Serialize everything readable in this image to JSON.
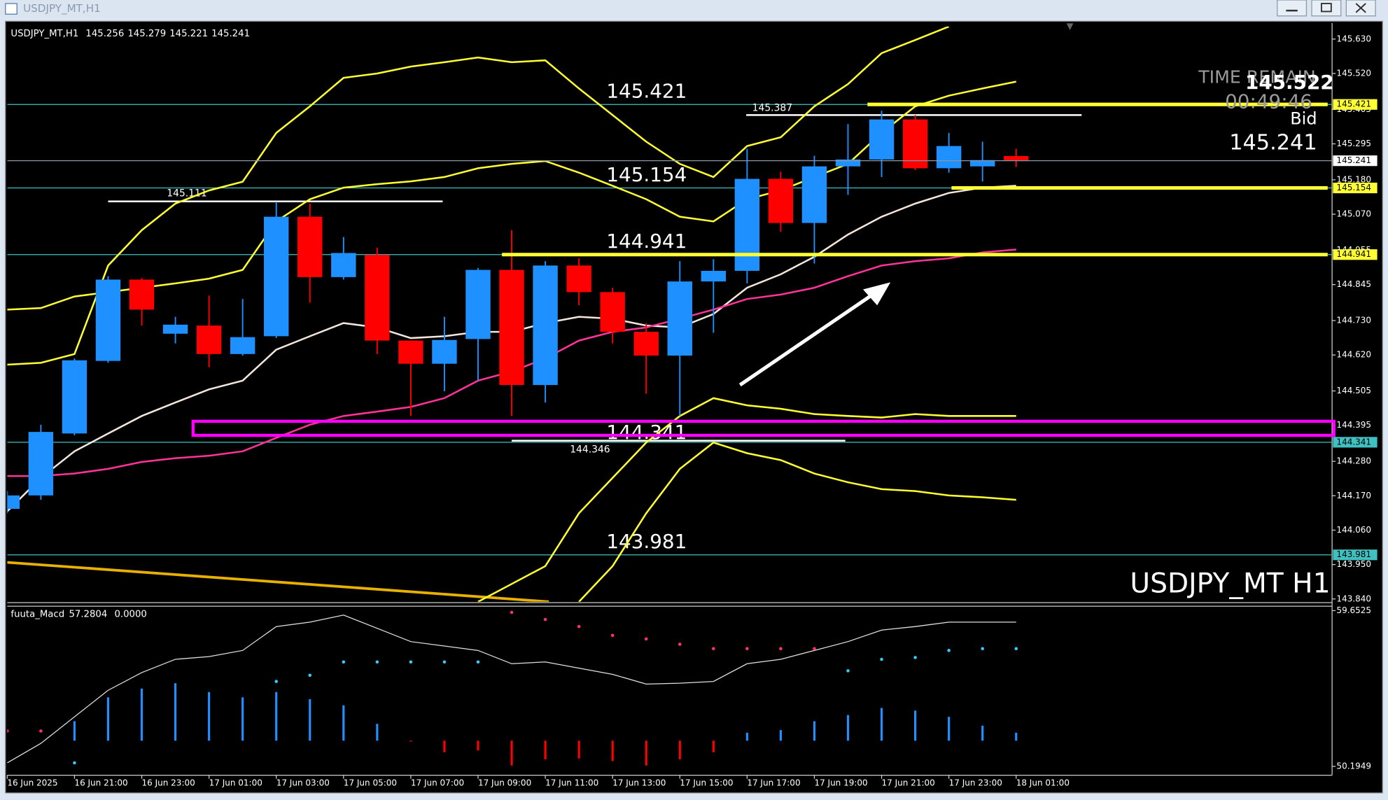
{
  "window_title": "USDJPY_MT,H1",
  "chart_data": [
    {
      "type": "candlestick",
      "symbol": "USDJPY_MT,H1",
      "categories": [
        "16 Jun 2025",
        null,
        "16 Jun 21:00",
        null,
        "16 Jun 23:00",
        null,
        "17 Jun 01:00",
        null,
        "17 Jun 03:00",
        null,
        "17 Jun 05:00",
        null,
        "17 Jun 07:00",
        null,
        "17 Jun 09:00",
        null,
        "17 Jun 11:00",
        null,
        "17 Jun 13:00",
        null,
        "17 Jun 15:00",
        null,
        "17 Jun 17:00",
        null,
        "17 Jun 19:00",
        null,
        "17 Jun 21:00",
        null,
        "17 Jun 23:00",
        null,
        "18 Jun 01:00"
      ],
      "open": [
        144.128,
        144.171,
        144.369,
        144.601,
        144.861,
        144.688,
        144.714,
        144.623,
        144.68,
        145.062,
        144.869,
        144.94,
        144.666,
        144.592,
        144.671,
        144.892,
        144.524,
        144.906,
        144.821,
        144.694,
        144.618,
        144.855,
        144.889,
        145.183,
        145.042,
        145.223,
        145.245,
        145.373,
        145.217,
        145.223,
        145.256
      ],
      "high": [
        144.185,
        144.397,
        144.609,
        144.872,
        144.866,
        144.742,
        144.81,
        144.799,
        145.11,
        145.104,
        144.997,
        144.963,
        144.666,
        144.742,
        144.898,
        145.019,
        144.92,
        144.929,
        144.835,
        144.722,
        144.92,
        144.926,
        145.279,
        145.206,
        145.257,
        145.358,
        145.401,
        145.387,
        145.33,
        145.302,
        145.279
      ],
      "low": [
        144.114,
        144.157,
        144.363,
        144.595,
        144.714,
        144.657,
        144.581,
        144.618,
        144.674,
        144.787,
        144.861,
        144.623,
        144.425,
        144.504,
        144.538,
        144.425,
        144.468,
        144.779,
        144.657,
        144.496,
        144.425,
        144.691,
        144.849,
        145.014,
        144.912,
        145.132,
        145.189,
        145.211,
        145.203,
        145.175,
        145.221
      ],
      "close": [
        144.171,
        144.374,
        144.603,
        144.861,
        144.765,
        144.717,
        144.623,
        144.677,
        145.062,
        144.869,
        144.946,
        144.666,
        144.592,
        144.668,
        144.892,
        144.524,
        144.906,
        144.821,
        144.694,
        144.618,
        144.855,
        144.889,
        145.183,
        145.042,
        145.223,
        145.245,
        145.373,
        145.217,
        145.288,
        145.243,
        145.241
      ],
      "up_color": "#1e90ff",
      "down_color": "#ff0000",
      "ylim": [
        143.831,
        145.67
      ],
      "yticks": [
        {
          "value": 145.63,
          "label": "145.630"
        },
        {
          "value": 145.52,
          "label": "145.520"
        },
        {
          "value": 145.405,
          "label": "145.405"
        },
        {
          "value": 145.295,
          "label": "145.295"
        },
        {
          "value": 145.18,
          "label": "145.180"
        },
        {
          "value": 145.07,
          "label": "145.070"
        },
        {
          "value": 144.955,
          "label": "144.955"
        },
        {
          "value": 144.845,
          "label": "144.845"
        },
        {
          "value": 144.73,
          "label": "144.730"
        },
        {
          "value": 144.62,
          "label": "144.620"
        },
        {
          "value": 144.505,
          "label": "144.505"
        },
        {
          "value": 144.395,
          "label": "144.395"
        },
        {
          "value": 144.28,
          "label": "144.280"
        },
        {
          "value": 144.17,
          "label": "144.170"
        },
        {
          "value": 144.06,
          "label": "144.060"
        },
        {
          "value": 143.95,
          "label": "143.950"
        },
        {
          "value": 143.84,
          "label": "143.840"
        }
      ],
      "series": [
        {
          "color": "#ffff33",
          "values": [
            144.589,
            144.595,
            144.623,
            144.906,
            145.019,
            145.104,
            145.146,
            145.174,
            145.33,
            145.415,
            145.506,
            145.52,
            145.542,
            145.556,
            145.571,
            145.556,
            145.562,
            145.472,
            145.387,
            145.302,
            145.231,
            145.189,
            145.288,
            145.316,
            145.415,
            145.486,
            145.585,
            145.627,
            145.67,
            null,
            null
          ]
        },
        {
          "color": "#ffff33",
          "values": [
            144.765,
            144.77,
            144.807,
            144.821,
            144.835,
            144.849,
            144.864,
            144.892,
            145.047,
            145.118,
            145.155,
            145.166,
            145.175,
            145.189,
            145.217,
            145.231,
            145.24,
            145.203,
            145.161,
            145.118,
            145.062,
            145.047,
            145.118,
            145.146,
            145.189,
            145.231,
            145.33,
            145.415,
            145.449,
            145.472,
            145.494
          ]
        },
        {
          "color": "#f5e6dc",
          "values": [
            144.12,
            144.227,
            144.312,
            144.369,
            144.425,
            144.468,
            144.51,
            144.538,
            144.637,
            144.68,
            144.722,
            144.708,
            144.674,
            144.68,
            144.694,
            144.694,
            144.722,
            144.742,
            144.736,
            144.714,
            144.708,
            144.751,
            144.835,
            144.878,
            144.934,
            145.005,
            145.062,
            145.104,
            145.138,
            145.155,
            145.161
          ]
        },
        {
          "color": "#ff3399",
          "values": [
            144.233,
            144.233,
            144.241,
            144.256,
            144.278,
            144.29,
            144.298,
            144.312,
            144.355,
            144.397,
            144.425,
            144.439,
            144.454,
            144.482,
            144.538,
            144.567,
            144.609,
            144.666,
            144.694,
            144.708,
            144.736,
            144.765,
            144.799,
            144.813,
            144.835,
            144.872,
            144.906,
            144.92,
            144.929,
            144.948,
            144.957
          ]
        },
        {
          "color": "#ffff33",
          "values": [
            null,
            null,
            null,
            null,
            null,
            null,
            null,
            null,
            null,
            null,
            null,
            null,
            null,
            null,
            143.831,
            143.888,
            143.945,
            144.114,
            144.227,
            144.34,
            144.425,
            144.482,
            144.459,
            144.448,
            144.431,
            144.425,
            144.42,
            144.431,
            144.425,
            144.425,
            144.425
          ]
        },
        {
          "color": "#ffff33",
          "values": [
            null,
            null,
            null,
            null,
            null,
            null,
            null,
            null,
            null,
            null,
            null,
            null,
            null,
            null,
            null,
            null,
            null,
            143.831,
            143.945,
            144.114,
            144.256,
            144.34,
            144.306,
            144.284,
            144.241,
            144.213,
            144.191,
            144.185,
            144.171,
            144.165,
            144.157
          ]
        }
      ],
      "levels": [
        {
          "value": 145.421,
          "color": "#40c0c0",
          "highlight": "#ffff33"
        },
        {
          "value": 145.154,
          "color": "#40c0c0",
          "highlight": "#ffff33"
        },
        {
          "value": 144.941,
          "color": "#40c0c0",
          "highlight": "#ffff33"
        },
        {
          "value": 144.341,
          "color": "#40c0c0",
          "highlight": null
        },
        {
          "value": 143.981,
          "color": "#40c0c0",
          "highlight": null
        }
      ],
      "marked_prices": [
        145.111,
        144.346,
        145.387
      ],
      "zone": [
        144.363,
        144.408
      ],
      "zone_color": "#ff00ff",
      "trend_lines": [
        {
          "color": "#e8b000",
          "values": [
            143.957,
            143.831
          ]
        }
      ],
      "bid": 145.241,
      "bid_label": "Bid",
      "top_price": 145.522,
      "time_remain_label": "TIME REMAIN",
      "time_remain": "00:49:46",
      "watermark": "USDJPY_MT H1"
    },
    {
      "type": "macd",
      "title": "fuuta_Macd",
      "header_values": [
        57.2804,
        {
          "value": 0,
          "label": "0.0000"
        }
      ],
      "ylim": [
        50.1949,
        59.6525
      ],
      "yticks": [
        59.6525,
        50.1949
      ],
      "base": 51.753,
      "up_color": "#1e90ff",
      "down_color": "#ff0000",
      "histogram": [
        null,
        null,
        52.935,
        54.386,
        54.923,
        55.246,
        54.708,
        54.386,
        54.708,
        54.278,
        53.902,
        52.774,
        51.699,
        51.054,
        51.161,
        50.248,
        50.624,
        50.678,
        50.517,
        50.248,
        50.624,
        51.054,
        52.236,
        52.397,
        52.935,
        53.311,
        53.741,
        53.58,
        53.204,
        52.666,
        52.236
      ],
      "line": {
        "color": "#e0e0e0",
        "values": [
          50.408,
          51.591,
          53.204,
          54.816,
          55.891,
          56.697,
          56.858,
          57.234,
          58.685,
          58.954,
          59.384,
          58.578,
          57.771,
          57.503,
          57.234,
          56.428,
          56.535,
          56.159,
          55.783,
          55.192,
          55.246,
          55.353,
          56.428,
          56.697,
          57.234,
          57.771,
          58.47,
          58.685,
          58.954,
          58.954,
          58.954
        ]
      },
      "dots": {
        "values": [
          52.344,
          52.344,
          50.408,
          null,
          null,
          null,
          null,
          null,
          55.353,
          55.73,
          56.535,
          56.535,
          56.535,
          56.535,
          56.535,
          59.545,
          59.115,
          58.685,
          58.148,
          57.933,
          57.611,
          57.342,
          57.342,
          57.342,
          57.342,
          56.0,
          56.697,
          56.804,
          57.234,
          57.342,
          57.342
        ],
        "colors": [
          "#ff3366",
          "#ff3366",
          "#33ccff",
          null,
          null,
          null,
          null,
          null,
          "#33ccff",
          "#33ccff",
          "#33ccff",
          "#33ccff",
          "#33ccff",
          "#33ccff",
          "#33ccff",
          "#ff3366",
          "#ff3366",
          "#ff3366",
          "#ff3366",
          "#ff3366",
          "#ff3366",
          "#ff3366",
          "#ff3366",
          "#ff3366",
          "#ff3366",
          "#33ccff",
          "#33ccff",
          "#33ccff",
          "#33ccff",
          "#33ccff",
          "#33ccff"
        ]
      }
    }
  ]
}
